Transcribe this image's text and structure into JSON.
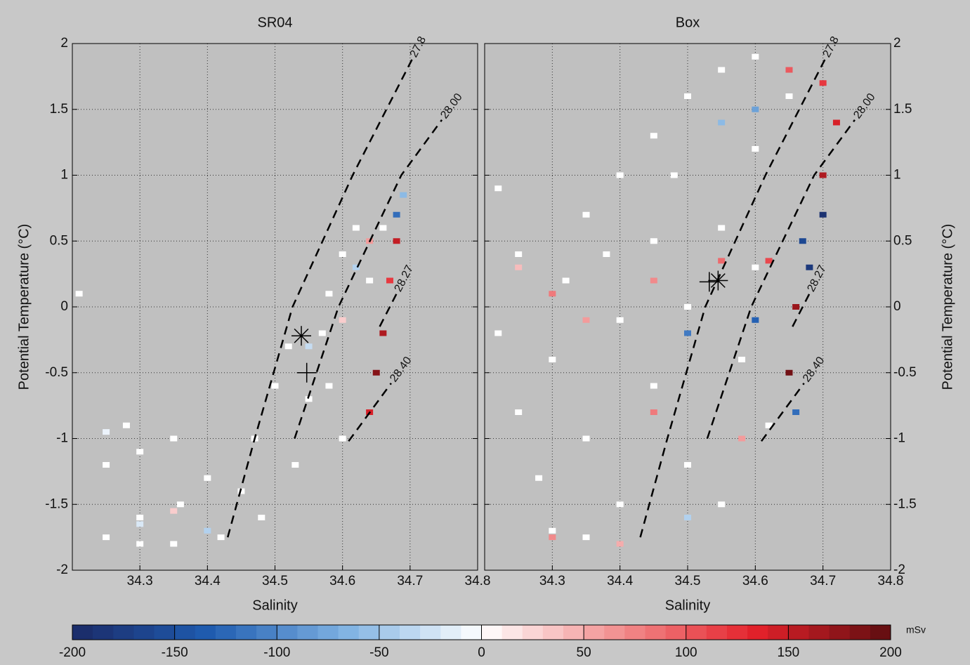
{
  "chart_data": [
    {
      "type": "ts-diagram",
      "title": "SR04",
      "xlabel": "Salinity",
      "ylabel": "Potential Temperature (°C)",
      "y_axis_side": "left",
      "xlim": [
        34.2,
        34.8
      ],
      "ylim": [
        -2,
        2
      ],
      "xticks": [
        34.3,
        34.4,
        34.5,
        34.6,
        34.7,
        34.8
      ],
      "yticks": [
        -2,
        -1.5,
        -1,
        -0.5,
        0,
        0.5,
        1,
        1.5,
        2
      ],
      "grid": true,
      "cells": {
        "x": [
          34.25,
          34.3,
          34.35,
          34.3,
          34.25,
          34.3,
          34.35,
          34.4,
          34.45,
          34.47,
          34.5,
          34.52,
          34.55,
          34.57,
          34.58,
          34.6,
          34.62,
          34.58,
          34.6,
          34.53,
          34.48,
          34.42,
          34.36,
          34.21,
          34.28,
          34.64,
          34.66,
          34.68,
          34.68,
          34.67,
          34.66,
          34.65,
          34.64,
          34.64,
          34.62,
          34.6,
          34.55,
          34.35,
          34.3,
          34.4,
          34.25,
          34.69
        ],
        "y": [
          -1.75,
          -1.8,
          -1.8,
          -1.6,
          -1.2,
          -1.1,
          -1.0,
          -1.3,
          -1.4,
          -1.0,
          -0.6,
          -0.3,
          -0.7,
          -0.2,
          0.1,
          0.4,
          0.6,
          -0.6,
          -1.0,
          -1.2,
          -1.6,
          -1.75,
          -1.5,
          0.1,
          -0.9,
          0.2,
          0.6,
          0.7,
          0.5,
          0.2,
          -0.2,
          -0.5,
          -0.8,
          0.5,
          0.3,
          -0.1,
          -0.3,
          -1.55,
          -1.65,
          -1.7,
          -0.95,
          0.85
        ],
        "v": [
          0,
          0,
          0,
          0,
          0,
          0,
          0,
          0,
          0,
          0,
          0,
          0,
          0,
          0,
          0,
          0,
          0,
          0,
          0,
          0,
          0,
          0,
          0,
          0,
          0,
          0,
          0,
          -120,
          150,
          120,
          160,
          180,
          140,
          60,
          -40,
          30,
          -30,
          30,
          -20,
          -40,
          -10,
          -60
        ]
      },
      "isopycnals": [
        {
          "label": "27.8",
          "x": [
            34.43,
            34.47,
            34.526,
            34.615,
            34.703
          ],
          "y": [
            -1.75,
            -1.0,
            0,
            1,
            1.88
          ]
        },
        {
          "label": "28.00",
          "x": [
            34.529,
            34.594,
            34.687,
            34.747
          ],
          "y": [
            -1.0,
            0,
            1,
            1.42
          ]
        },
        {
          "label": "28.27",
          "x": [
            34.655,
            34.68
          ],
          "y": [
            -0.15,
            0.1
          ]
        },
        {
          "label": "28.40",
          "x": [
            34.609,
            34.672
          ],
          "y": [
            -1.02,
            -0.58
          ]
        }
      ],
      "markers": [
        {
          "symbol": "asterisk",
          "x": 34.539,
          "y": -0.22
        },
        {
          "symbol": "plus",
          "x": 34.547,
          "y": -0.5
        }
      ]
    },
    {
      "type": "ts-diagram",
      "title": "Box",
      "xlabel": "Salinity",
      "ylabel": "Potential Temperature (°C)",
      "y_axis_side": "right",
      "xlim": [
        34.2,
        34.8
      ],
      "ylim": [
        -2,
        2
      ],
      "xticks": [
        34.3,
        34.4,
        34.5,
        34.6,
        34.7,
        34.8
      ],
      "yticks": [
        -2,
        -1.5,
        -1,
        -0.5,
        0,
        0.5,
        1,
        1.5,
        2
      ],
      "grid": true,
      "cells": {
        "x": [
          34.22,
          34.25,
          34.22,
          34.25,
          34.28,
          34.3,
          34.35,
          34.4,
          34.35,
          34.3,
          34.32,
          34.35,
          34.4,
          34.45,
          34.5,
          34.55,
          34.6,
          34.45,
          34.4,
          34.45,
          34.5,
          34.55,
          34.5,
          34.55,
          34.6,
          34.65,
          34.6,
          34.58,
          34.62,
          34.48,
          34.38,
          34.25,
          34.3,
          34.35,
          34.45,
          34.55,
          34.62,
          34.67,
          34.68,
          34.66,
          34.65,
          34.66,
          34.7,
          34.72,
          34.7,
          34.65,
          34.6,
          34.55,
          34.5,
          34.6,
          34.45,
          34.3,
          34.4,
          34.5,
          34.58,
          34.7
        ],
        "y": [
          0.9,
          0.4,
          -0.2,
          -0.8,
          -1.3,
          -1.7,
          -1.75,
          -1.5,
          -1.0,
          -0.4,
          0.2,
          0.7,
          1.0,
          1.3,
          1.6,
          1.8,
          1.9,
          0.5,
          -0.1,
          -0.6,
          -1.2,
          -1.5,
          0.0,
          0.6,
          1.2,
          1.6,
          0.3,
          -0.4,
          -0.9,
          1.0,
          0.4,
          0.3,
          0.1,
          -0.1,
          0.2,
          0.35,
          0.35,
          0.5,
          0.3,
          0.0,
          -0.5,
          -0.8,
          1.0,
          1.4,
          1.7,
          1.8,
          1.5,
          1.4,
          -0.2,
          -0.1,
          -0.8,
          -1.75,
          -1.8,
          -1.6,
          -1.0,
          0.7
        ],
        "v": [
          0,
          0,
          0,
          0,
          0,
          0,
          0,
          0,
          0,
          0,
          0,
          0,
          0,
          0,
          0,
          0,
          0,
          0,
          0,
          0,
          0,
          0,
          0,
          0,
          0,
          0,
          0,
          0,
          0,
          0,
          0,
          40,
          80,
          60,
          70,
          90,
          110,
          -160,
          -180,
          170,
          190,
          -120,
          160,
          140,
          120,
          100,
          -80,
          -60,
          -110,
          -130,
          80,
          70,
          50,
          -40,
          60,
          -190
        ]
      },
      "isopycnals": [
        {
          "label": "27.8",
          "x": [
            34.43,
            34.47,
            34.526,
            34.615,
            34.703
          ],
          "y": [
            -1.75,
            -1.0,
            0,
            1,
            1.88
          ]
        },
        {
          "label": "28.00",
          "x": [
            34.529,
            34.594,
            34.687,
            34.747
          ],
          "y": [
            -1.0,
            0,
            1,
            1.42
          ]
        },
        {
          "label": "28.27",
          "x": [
            34.655,
            34.68
          ],
          "y": [
            -0.15,
            0.1
          ]
        },
        {
          "label": "28.40",
          "x": [
            34.609,
            34.672
          ],
          "y": [
            -1.02,
            -0.58
          ]
        }
      ],
      "markers": [
        {
          "symbol": "plus",
          "x": 34.532,
          "y": 0.19
        },
        {
          "symbol": "asterisk",
          "x": 34.545,
          "y": 0.2
        }
      ]
    },
    {
      "type": "colorbar",
      "label": "mSv",
      "lim": [
        -200,
        200
      ],
      "ticks": [
        -200,
        -150,
        -100,
        -50,
        0,
        50,
        100,
        150,
        200
      ],
      "colors": [
        "#1b2a66",
        "#1f5cb0",
        "#7fb2e2",
        "#ffffff",
        "#f29090",
        "#e4222b",
        "#5e0d10"
      ]
    }
  ]
}
